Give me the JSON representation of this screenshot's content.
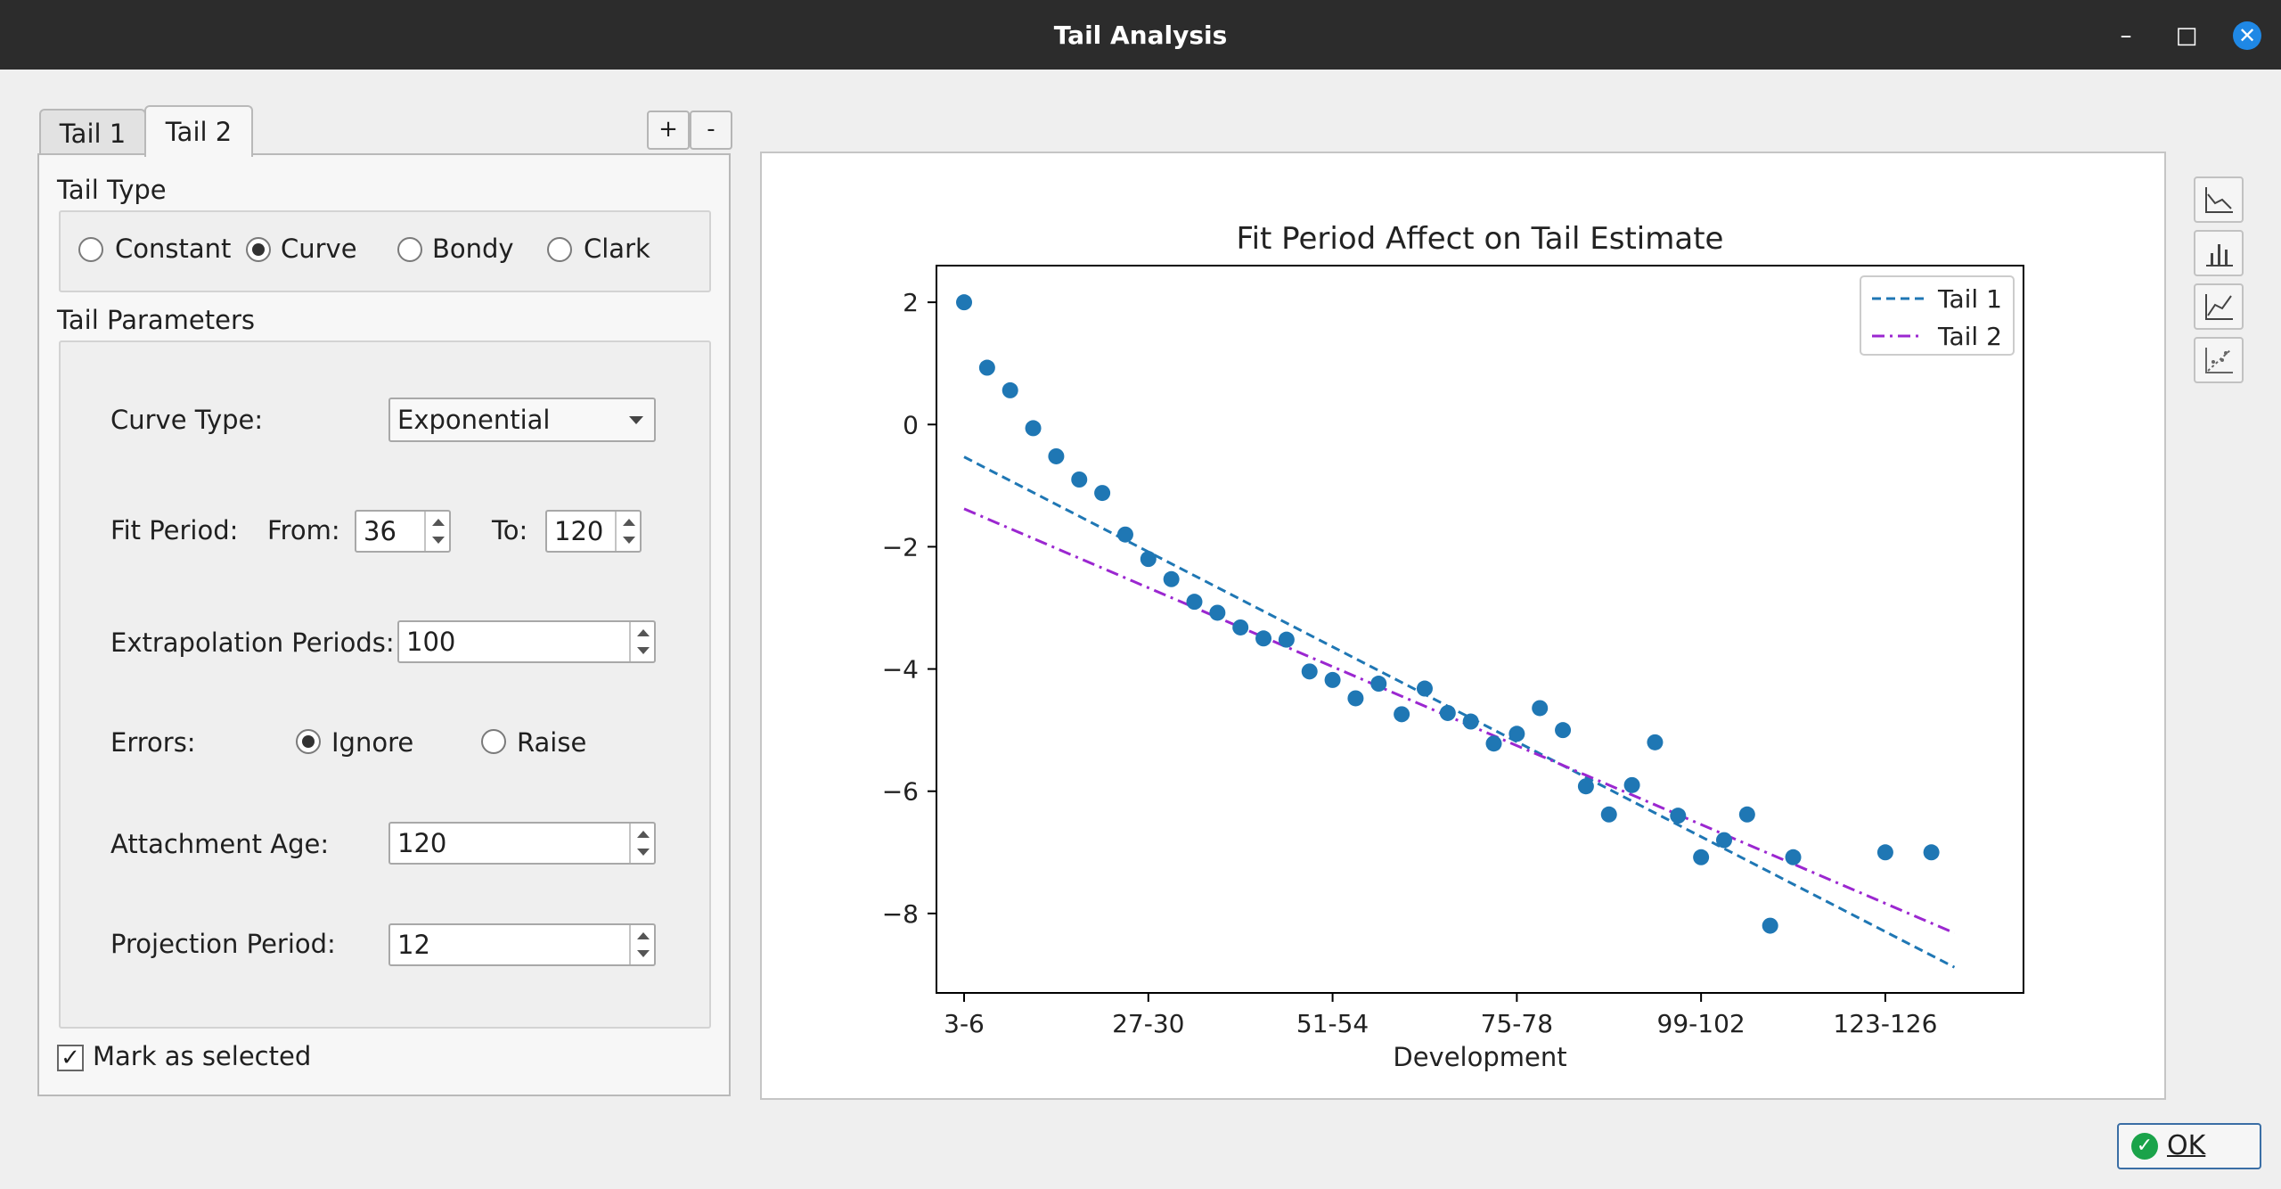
{
  "window": {
    "title": "Tail Analysis",
    "controls": {
      "minimize": "–",
      "maximize": "□",
      "close": "✕"
    }
  },
  "tabs": [
    {
      "label": "Tail 1",
      "active": false
    },
    {
      "label": "Tail 2",
      "active": true
    }
  ],
  "tab_controls": {
    "add": "+",
    "remove": "-"
  },
  "tail_type": {
    "heading": "Tail Type",
    "options": [
      "Constant",
      "Curve",
      "Bondy",
      "Clark"
    ],
    "selected": "Curve"
  },
  "tail_parameters": {
    "heading": "Tail Parameters",
    "curve_type": {
      "label": "Curve Type:",
      "value": "Exponential"
    },
    "fit_period": {
      "label": "Fit Period:",
      "from_label": "From:",
      "from_value": "36",
      "to_label": "To:",
      "to_value": "120"
    },
    "extrapolation": {
      "label": "Extrapolation Periods:",
      "value": "100"
    },
    "errors": {
      "label": "Errors:",
      "options": [
        "Ignore",
        "Raise"
      ],
      "selected": "Ignore"
    },
    "attachment_age": {
      "label": "Attachment Age:",
      "value": "120"
    },
    "projection_period": {
      "label": "Projection Period:",
      "value": "12"
    }
  },
  "mark_selected": {
    "label": "Mark as selected",
    "checked": true
  },
  "toolbar_icons": [
    "line-chart-icon",
    "bar-chart-icon",
    "area-chart-icon",
    "scatter-fit-icon"
  ],
  "ok_button": {
    "label": "OK"
  },
  "colors": {
    "tail1": "#1f77b4",
    "tail2": "#9b27d0",
    "points": "#1f77b4"
  },
  "chart_data": {
    "type": "scatter",
    "title": "Fit Period Affect on Tail Estimate",
    "xlabel": "Development",
    "ylabel": "",
    "categories_shown": [
      "3-6",
      "27-30",
      "51-54",
      "75-78",
      "99-102",
      "123-126"
    ],
    "x_tick_index": [
      0,
      8,
      16,
      24,
      32,
      40
    ],
    "xlim": [
      -1.2,
      46.0
    ],
    "ylim": [
      -9.3,
      2.6
    ],
    "y_ticks": [
      2,
      0,
      -2,
      -4,
      -6,
      -8
    ],
    "points": [
      {
        "x": 0,
        "y": 2.0
      },
      {
        "x": 1,
        "y": 0.93
      },
      {
        "x": 2,
        "y": 0.56
      },
      {
        "x": 3,
        "y": -0.06
      },
      {
        "x": 4,
        "y": -0.52
      },
      {
        "x": 5,
        "y": -0.9
      },
      {
        "x": 6,
        "y": -1.12
      },
      {
        "x": 7,
        "y": -1.8
      },
      {
        "x": 8,
        "y": -2.2
      },
      {
        "x": 9,
        "y": -2.53
      },
      {
        "x": 10,
        "y": -2.9
      },
      {
        "x": 11,
        "y": -3.08
      },
      {
        "x": 12,
        "y": -3.32
      },
      {
        "x": 13,
        "y": -3.5
      },
      {
        "x": 14,
        "y": -3.52
      },
      {
        "x": 15,
        "y": -4.04
      },
      {
        "x": 16,
        "y": -4.18
      },
      {
        "x": 17,
        "y": -4.48
      },
      {
        "x": 18,
        "y": -4.24
      },
      {
        "x": 19,
        "y": -4.74
      },
      {
        "x": 20,
        "y": -4.32
      },
      {
        "x": 21,
        "y": -4.72
      },
      {
        "x": 22,
        "y": -4.86
      },
      {
        "x": 23,
        "y": -5.22
      },
      {
        "x": 24,
        "y": -5.06
      },
      {
        "x": 25,
        "y": -4.64
      },
      {
        "x": 26,
        "y": -5.0
      },
      {
        "x": 27,
        "y": -5.92
      },
      {
        "x": 28,
        "y": -6.38
      },
      {
        "x": 29,
        "y": -5.9
      },
      {
        "x": 30,
        "y": -5.2
      },
      {
        "x": 31,
        "y": -6.4
      },
      {
        "x": 32,
        "y": -7.08
      },
      {
        "x": 33,
        "y": -6.8
      },
      {
        "x": 34,
        "y": -6.38
      },
      {
        "x": 35,
        "y": -8.2
      },
      {
        "x": 36,
        "y": -7.08
      },
      {
        "x": 40,
        "y": -7.0
      },
      {
        "x": 42,
        "y": -7.0
      }
    ],
    "series": [
      {
        "name": "Tail 1",
        "style": "dashed",
        "x": [
          0,
          43.0
        ],
        "y": [
          -0.53,
          -8.88
        ]
      },
      {
        "name": "Tail 2",
        "style": "dashdot",
        "x": [
          0,
          43.0
        ],
        "y": [
          -1.38,
          -8.32
        ]
      }
    ],
    "legend": "top-right",
    "grid": false
  }
}
